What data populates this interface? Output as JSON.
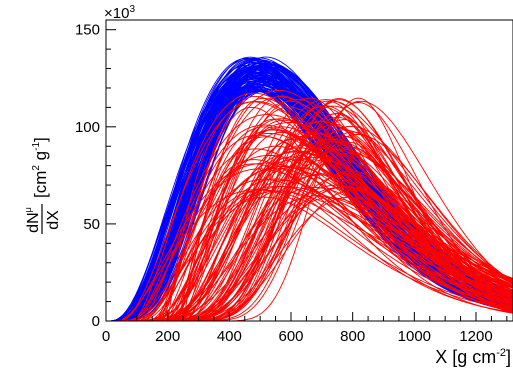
{
  "chart_data": {
    "type": "line",
    "title": "",
    "xlabel": "X [g cm-2]",
    "ylabel": "dNμ/dX [cm2 g-1]",
    "y_multiplier_label": "×10^3",
    "xlim": [
      0,
      1320
    ],
    "ylim": [
      0,
      155
    ],
    "x_ticks": [
      0,
      200,
      400,
      600,
      800,
      1000,
      1200
    ],
    "y_ticks": [
      0,
      50,
      100,
      150
    ],
    "grid": false,
    "legend": "none",
    "series_groups": [
      {
        "color": "#0000ff",
        "count": 120,
        "peak_x_range": [
          455,
          535
        ],
        "peak_y_range": [
          118,
          136
        ],
        "start_x_range": [
          0,
          40
        ],
        "end_y_at_1320_range": [
          5,
          15
        ]
      },
      {
        "color": "#ff0000",
        "count": 110,
        "peak_x_range": [
          470,
          830
        ],
        "peak_y_range": [
          63,
          119
        ],
        "start_x_range": [
          30,
          260
        ],
        "end_y_at_1320_range": [
          4,
          22
        ]
      }
    ]
  }
}
